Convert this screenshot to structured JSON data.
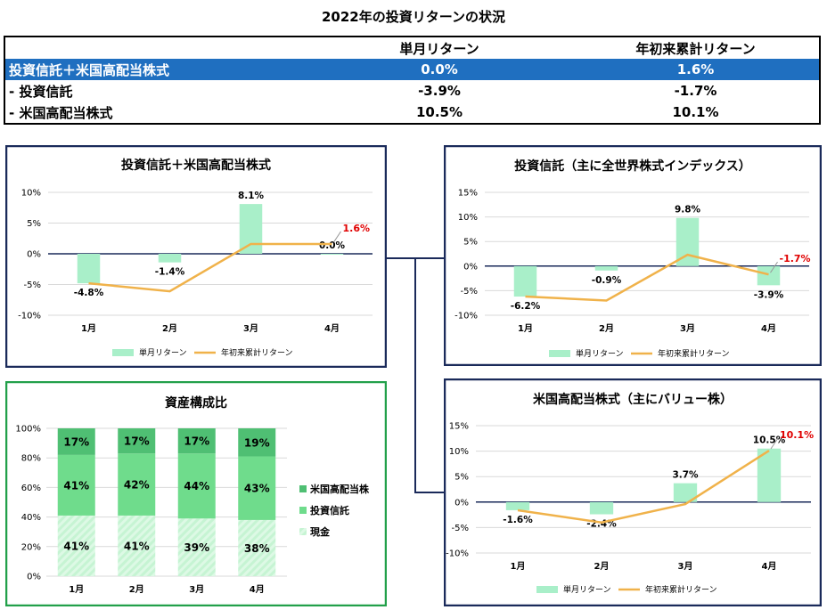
{
  "page_title": "2022年の投資リターンの状況",
  "summary": {
    "headers": [
      "",
      "単月リターン",
      "年初来累計リターン"
    ],
    "rows": [
      {
        "label": "投資信託＋米国高配当株式",
        "monthly": "0.0%",
        "ytd": "1.6%"
      },
      {
        "label": "- 投資信託",
        "monthly": "-3.9%",
        "ytd": "-1.7%"
      },
      {
        "label": "- 米国高配当株式",
        "monthly": "10.5%",
        "ytd": "10.1%"
      }
    ],
    "highlight_color": "#1f6fc0"
  },
  "colors": {
    "bar": "#a9efc9",
    "line": "#f0b24a",
    "highlight_label": "#e00000",
    "frame_blue": "#1a2a5a",
    "frame_green": "#22a04a",
    "stack_dark": "#4fbf73",
    "stack_mid": "#6fdc8c",
    "stack_light": "#b7f0c8"
  },
  "chart_data": [
    {
      "type": "bar",
      "title": "投資信託＋米国高配当株式",
      "categories": [
        "1月",
        "2月",
        "3月",
        "4月"
      ],
      "series": [
        {
          "name": "単月リターン",
          "type": "bar",
          "values": [
            -4.8,
            -1.4,
            8.1,
            0.0
          ],
          "labels": [
            "-4.8%",
            "-1.4%",
            "8.1%",
            "0.0%"
          ]
        },
        {
          "name": "年初来累計リターン",
          "type": "line",
          "values": [
            -4.8,
            -6.1,
            1.6,
            1.6
          ],
          "labels": [
            "",
            "",
            "",
            "1.6%"
          ]
        }
      ],
      "ylim": [
        -10,
        10
      ],
      "yticks": [
        "10%",
        "5%",
        "0%",
        "-5%",
        "-10%"
      ],
      "legend": "bottom"
    },
    {
      "type": "bar",
      "title": "投資信託（主に全世界株式インデックス）",
      "categories": [
        "1月",
        "2月",
        "3月",
        "4月"
      ],
      "series": [
        {
          "name": "単月リターン",
          "type": "bar",
          "values": [
            -6.2,
            -0.9,
            9.8,
            -3.9
          ],
          "labels": [
            "-6.2%",
            "-0.9%",
            "9.8%",
            "-3.9%"
          ]
        },
        {
          "name": "年初来累計リターン",
          "type": "line",
          "values": [
            -6.2,
            -7.0,
            2.3,
            -1.7
          ],
          "labels": [
            "",
            "",
            "",
            "-1.7%"
          ]
        }
      ],
      "ylim": [
        -10,
        15
      ],
      "yticks": [
        "15%",
        "10%",
        "5%",
        "0%",
        "-5%",
        "-10%"
      ],
      "legend": "bottom"
    },
    {
      "type": "bar",
      "title": "米国高配当株式（主にバリュー株）",
      "categories": [
        "1月",
        "2月",
        "3月",
        "4月"
      ],
      "series": [
        {
          "name": "単月リターン",
          "type": "bar",
          "values": [
            -1.6,
            -2.4,
            3.7,
            10.5
          ],
          "labels": [
            "-1.6%",
            "-2.4%",
            "3.7%",
            "10.5%"
          ]
        },
        {
          "name": "年初来累計リターン",
          "type": "line",
          "values": [
            -1.6,
            -4.0,
            -0.4,
            10.1
          ],
          "labels": [
            "",
            "",
            "",
            "10.1%"
          ]
        }
      ],
      "ylim": [
        -10,
        15
      ],
      "yticks": [
        "15%",
        "10%",
        "5%",
        "0%",
        "-5%",
        "-10%"
      ],
      "legend": "bottom"
    },
    {
      "type": "bar",
      "stacked": true,
      "title": "資産構成比",
      "categories": [
        "1月",
        "2月",
        "3月",
        "4月"
      ],
      "series": [
        {
          "name": "現金",
          "values": [
            41,
            41,
            39,
            38
          ],
          "labels": [
            "41%",
            "41%",
            "39%",
            "38%"
          ]
        },
        {
          "name": "投資信託",
          "values": [
            41,
            42,
            44,
            43
          ],
          "labels": [
            "41%",
            "42%",
            "44%",
            "43%"
          ]
        },
        {
          "name": "米国高配当株",
          "values": [
            17,
            17,
            17,
            19
          ],
          "labels": [
            "17%",
            "17%",
            "17%",
            "19%"
          ]
        }
      ],
      "ylim": [
        0,
        100
      ],
      "yticks": [
        "100%",
        "80%",
        "60%",
        "40%",
        "20%",
        "0%"
      ],
      "legend": "right"
    }
  ]
}
